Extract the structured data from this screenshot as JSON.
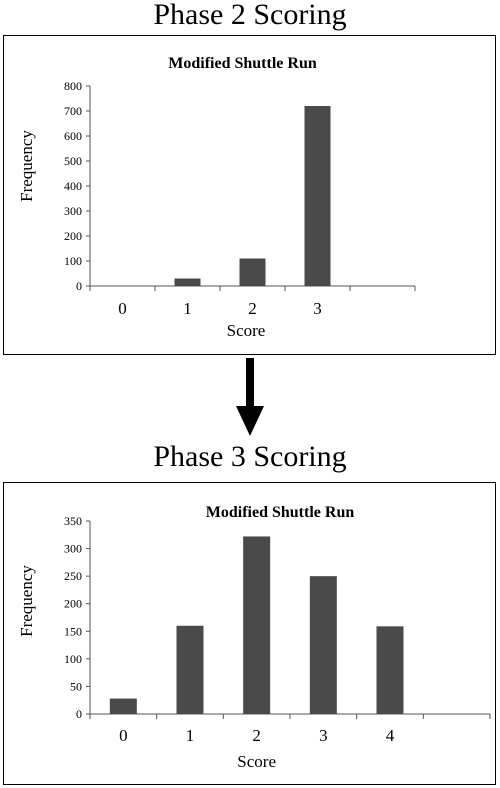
{
  "phase2": {
    "heading": "Phase 2 Scoring"
  },
  "phase3": {
    "heading": "Phase 3 Scoring"
  },
  "chart_data": [
    {
      "type": "bar",
      "title": "Modified Shuttle Run",
      "xlabel": "Score",
      "ylabel": "Frequency",
      "categories": [
        "0",
        "1",
        "2",
        "3",
        ""
      ],
      "values": [
        0,
        30,
        110,
        720,
        0
      ],
      "ylim": [
        0,
        800
      ],
      "yticks": [
        0,
        100,
        200,
        300,
        400,
        500,
        600,
        700,
        800
      ],
      "grid": false,
      "legend": "none",
      "bar_color": "#4a4a4a"
    },
    {
      "type": "bar",
      "title": "Modified Shuttle Run",
      "xlabel": "Score",
      "ylabel": "Frequency",
      "categories": [
        "0",
        "1",
        "2",
        "3",
        "4",
        ""
      ],
      "values": [
        28,
        160,
        322,
        250,
        159,
        0
      ],
      "ylim": [
        0,
        350
      ],
      "yticks": [
        0,
        50,
        100,
        150,
        200,
        250,
        300,
        350
      ],
      "grid": false,
      "legend": "none",
      "bar_color": "#4a4a4a"
    }
  ]
}
